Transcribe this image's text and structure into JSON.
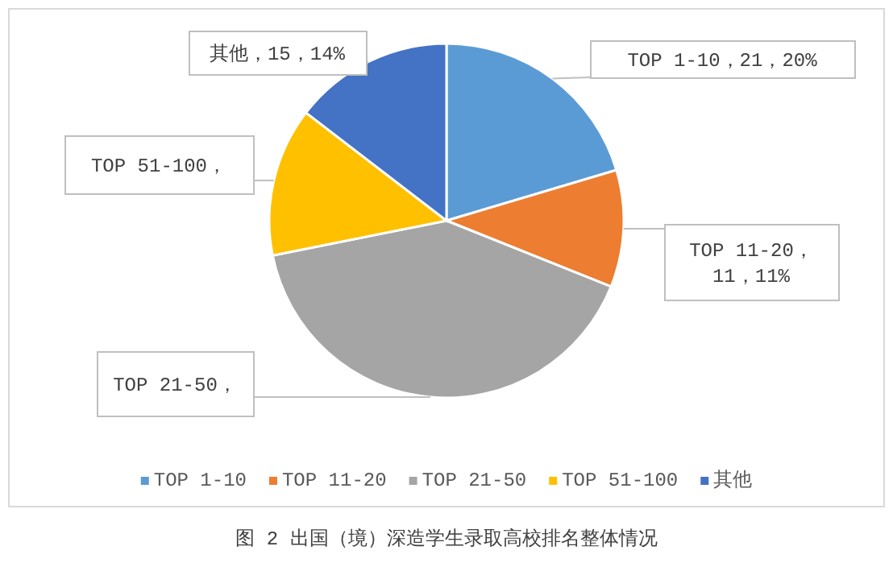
{
  "chart_data": {
    "type": "pie",
    "title": "图 2 出国（境）深造学生录取高校排名整体情况",
    "categories": [
      "TOP 1-10",
      "TOP 11-20",
      "TOP 21-50",
      "TOP 51-100",
      "其他"
    ],
    "values": [
      21,
      11,
      42,
      14,
      15
    ],
    "colors": [
      "#5b9bd5",
      "#ed7d31",
      "#a5a5a5",
      "#ffc000",
      "#4472c4"
    ],
    "value_labels": [
      "TOP 1-10，21，20%",
      "TOP 11-20，\n11，11%",
      "TOP 21-50，",
      "TOP 51-100，",
      "其他，15，14%"
    ],
    "legend": "bottom"
  }
}
